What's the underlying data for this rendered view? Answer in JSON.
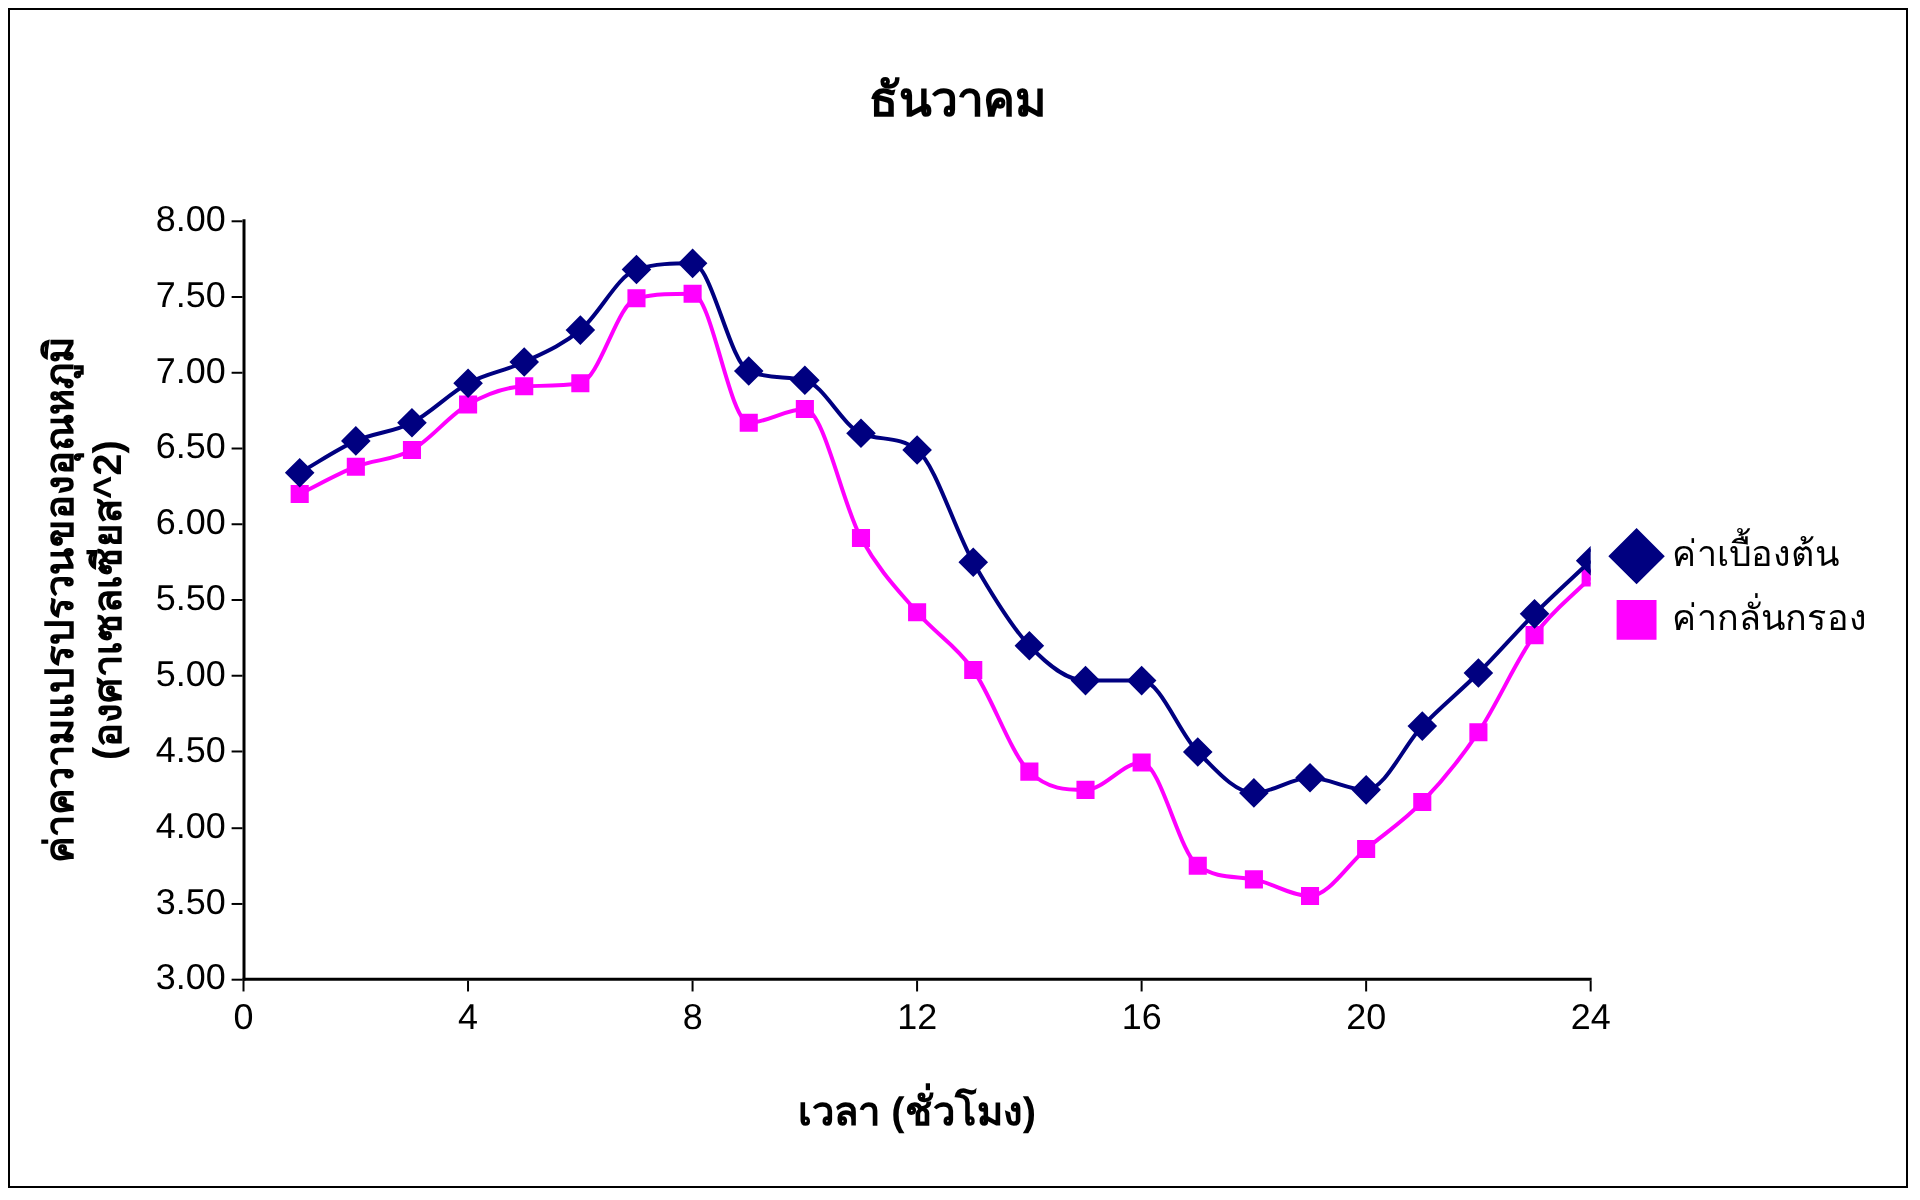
{
  "chart_data": {
    "type": "line",
    "title": "ธันวาคม",
    "xlabel": "เวลา (ชั่วโมง)",
    "ylabel": "ค่าความแปรปรวนของอุณหภูมิ\n(องศาเซลเซียส^2)",
    "x": [
      1,
      2,
      3,
      4,
      5,
      6,
      7,
      8,
      9,
      10,
      11,
      12,
      13,
      14,
      15,
      16,
      17,
      18,
      19,
      20,
      21,
      22,
      23,
      24
    ],
    "series": [
      {
        "name": "ค่าเบื้องต้น",
        "color": "#000080",
        "marker": "diamond",
        "values": [
          6.34,
          6.55,
          6.67,
          6.93,
          7.07,
          7.28,
          7.68,
          7.72,
          7.01,
          6.95,
          6.6,
          6.49,
          5.75,
          5.2,
          4.97,
          4.97,
          4.5,
          4.23,
          4.33,
          4.25,
          4.67,
          5.02,
          5.41,
          5.76
        ]
      },
      {
        "name": "ค่ากลั่นกรอง",
        "color": "#ff00ff",
        "marker": "square",
        "values": [
          6.2,
          6.38,
          6.49,
          6.79,
          6.91,
          6.93,
          7.49,
          7.52,
          6.67,
          6.76,
          5.91,
          5.42,
          5.04,
          4.37,
          4.25,
          4.43,
          3.75,
          3.66,
          3.55,
          3.86,
          4.17,
          4.63,
          5.27,
          5.65
        ]
      }
    ],
    "xlim": [
      0,
      24
    ],
    "xticks": [
      0,
      4,
      8,
      12,
      16,
      20,
      24
    ],
    "ylim": [
      3,
      8
    ],
    "yticks": [
      {
        "value": 3,
        "label": "3.00"
      },
      {
        "value": 3.5,
        "label": "3.50"
      },
      {
        "value": 4,
        "label": "4.00"
      },
      {
        "value": 4.5,
        "label": "4.50"
      },
      {
        "value": 5,
        "label": "5.00"
      },
      {
        "value": 5.5,
        "label": "5.50"
      },
      {
        "value": 6,
        "label": "6.00"
      },
      {
        "value": 6.5,
        "label": "6.50"
      },
      {
        "value": 7,
        "label": "7.00"
      },
      {
        "value": 7.5,
        "label": "7.50"
      },
      {
        "value": 8,
        "label": "8.00"
      }
    ],
    "grid": false,
    "legend": "right"
  }
}
